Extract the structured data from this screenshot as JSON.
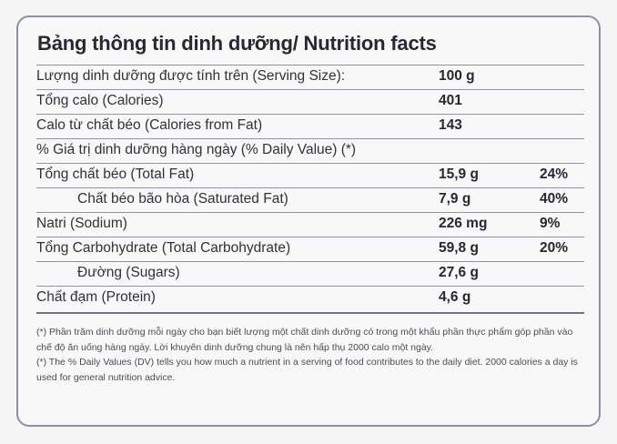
{
  "title": "Bảng thông tin dinh dưỡng/ Nutrition facts",
  "rows": [
    {
      "label": "Lượng dinh dưỡng được tính trên (Serving Size):",
      "amount": "100 g",
      "dv": ""
    },
    {
      "label": "Tổng calo (Calories)",
      "amount": "401",
      "dv": ""
    },
    {
      "label": "Calo từ chất béo (Calories from Fat)",
      "amount": "143",
      "dv": ""
    },
    {
      "label": "% Giá trị dinh dưỡng hàng ngày (% Daily Value) (*)",
      "amount": "",
      "dv": ""
    },
    {
      "label": "Tổng chất béo (Total Fat)",
      "amount": "15,9 g",
      "dv": "24%"
    },
    {
      "label": "Chất béo bão hòa (Saturated Fat)",
      "amount": "7,9 g",
      "dv": "40%"
    },
    {
      "label": "Natri (Sodium)",
      "amount": "226 mg",
      "dv": "9%"
    },
    {
      "label": "Tổng Carbohydrate (Total Carbohydrate)",
      "amount": "59,8 g",
      "dv": "20%"
    },
    {
      "label": "Đường (Sugars)",
      "amount": "27,6 g",
      "dv": ""
    },
    {
      "label": "Chất đạm (Protein)",
      "amount": "4,6 g",
      "dv": ""
    }
  ],
  "footnote": {
    "vi": "(*) Phần trăm dinh dưỡng mỗi ngày cho bạn biết lượng một chất dinh dưỡng có trong một khẩu phần thực phẩm góp phần vào chế độ ăn uống hàng ngày. Lời khuyên dinh dưỡng chung là nên hấp thụ 2000 calo một ngày.",
    "en": "(*) The % Daily Values (DV) tells you how much a nutrient in a serving of food contributes to the daily diet. 2000 calories a day is used for general nutrition advice."
  }
}
